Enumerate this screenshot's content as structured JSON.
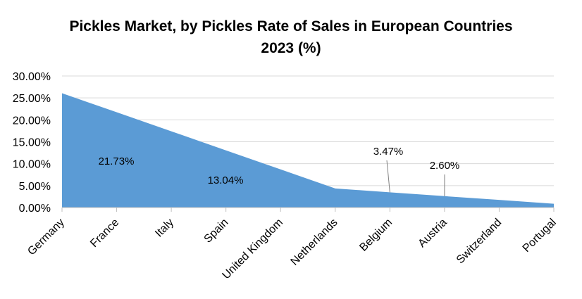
{
  "chart_data": {
    "type": "area",
    "title": "Pickles Market, by Pickles Rate of Sales in European Countries 2023 (%)",
    "title_lines": [
      "Pickles Market, by Pickles Rate of Sales in European Countries",
      "2023 (%)"
    ],
    "categories": [
      "Germany",
      "France",
      "Italy",
      "Spain",
      "United Kingdom",
      "Netherlands",
      "Belgium",
      "Austria",
      "Switzerland",
      "Portugal"
    ],
    "values": [
      26.07,
      21.73,
      17.39,
      13.04,
      8.7,
      4.35,
      3.47,
      2.6,
      1.74,
      0.87
    ],
    "data_labels": [
      {
        "category": "France",
        "text": "21.73%"
      },
      {
        "category": "Spain",
        "text": "13.04%"
      },
      {
        "category": "Belgium",
        "text": "3.47%"
      },
      {
        "category": "Austria",
        "text": "2.60%"
      }
    ],
    "ylim": [
      0,
      30
    ],
    "yticks": [
      "0.00%",
      "5.00%",
      "10.00%",
      "15.00%",
      "20.00%",
      "25.00%",
      "30.00%"
    ],
    "ytick_values": [
      0,
      5,
      10,
      15,
      20,
      25,
      30
    ],
    "grid": true,
    "legend": "none",
    "colors": {
      "area": "#5B9BD5",
      "grid": "#D9D9D9",
      "axis": "#BFBFBF"
    }
  }
}
